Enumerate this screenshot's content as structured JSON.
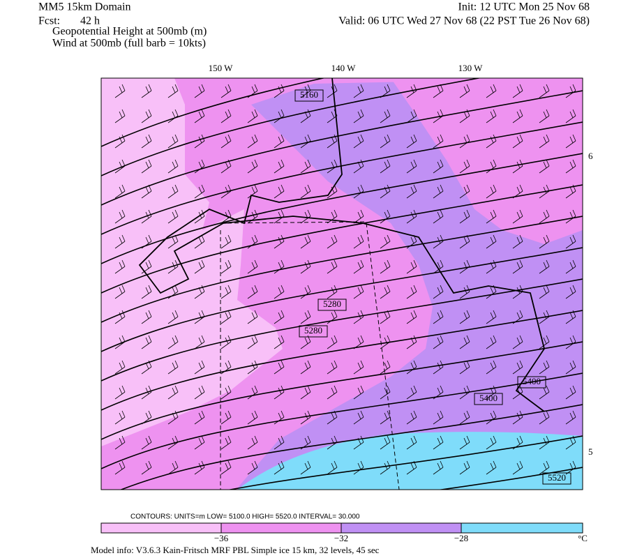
{
  "header": {
    "title": "MM5 15km Domain",
    "fcst_label": "Fcst:",
    "fcst": "42 h",
    "init": "Init: 12 UTC Mon 25 Nov 68",
    "valid": "Valid: 06 UTC Wed 27 Nov 68 (22 PST Tue 26 Nov 68)",
    "fields": [
      "Geopotential Height at 500mb (m)",
      "Wind at 500mb (full barb = 10kts)"
    ]
  },
  "map": {
    "lon_labels": [
      "150 W",
      "140 W",
      "130 W"
    ],
    "lat_labels": [
      "6",
      "5"
    ],
    "contour_labels": [
      "5160",
      "5280",
      "5280",
      "5400",
      "5400",
      "5520"
    ]
  },
  "footer": {
    "contours": "CONTOURS:  UNITS=m   LOW=   5100.0      HIGH=   5520.0      INTERVAL=    30.000",
    "colorbar_labels": [
      "−36",
      "−32",
      "−28",
      "°C"
    ],
    "model_info": "Model info: V3.6.3 Kain-Fritsch MRF PBL    Simple ice   15 km,  32 levels,  45 sec"
  }
}
